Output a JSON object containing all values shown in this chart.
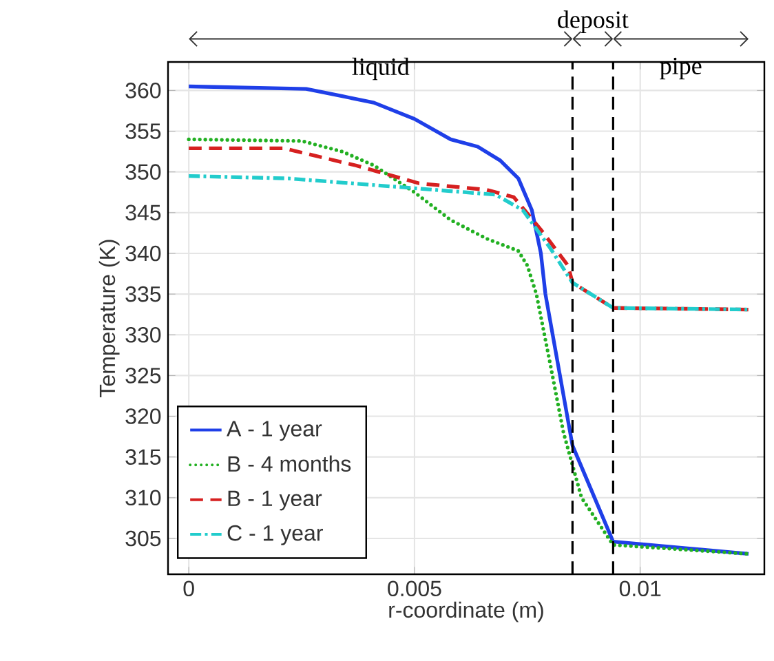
{
  "chart_data": {
    "type": "line",
    "xlabel": "r-coordinate (m)",
    "ylabel": "Temperature (K)",
    "xlim": [
      -0.00046,
      0.01275
    ],
    "ylim": [
      300.6,
      363.5
    ],
    "xticks": [
      0,
      0.005,
      0.01
    ],
    "yticks": [
      305,
      310,
      315,
      320,
      325,
      330,
      335,
      340,
      345,
      350,
      355,
      360
    ],
    "grid": true,
    "legend": "bottom left",
    "ref_lines": [
      {
        "axis": "x",
        "value": 0.0085,
        "color": "#000000",
        "line_style": "dashed"
      },
      {
        "axis": "x",
        "value": 0.0094,
        "color": "#000000",
        "line_style": "dashed"
      }
    ],
    "annotations": [
      "liquid",
      "deposit",
      "pipe"
    ],
    "series": [
      {
        "name": "A - 1 year",
        "color": "#1f3fe8",
        "line_style": "solid",
        "x": [
          0,
          0.0026,
          0.0034,
          0.0041,
          0.005,
          0.0058,
          0.0064,
          0.0069,
          0.0073,
          0.0076,
          0.0078,
          0.0079,
          0.0085,
          0.0094,
          0.0124
        ],
        "values": [
          360.5,
          360.2,
          359.3,
          358.5,
          356.5,
          354,
          353.1,
          351.4,
          349.2,
          345.3,
          340,
          335,
          316.4,
          304.6,
          303.1
        ]
      },
      {
        "name": "B - 4 months",
        "color": "#22b022",
        "line_style": "dotted",
        "x": [
          0,
          0.0025,
          0.0034,
          0.0041,
          0.005,
          0.0058,
          0.0066,
          0.0073,
          0.0075,
          0.0077,
          0.008,
          0.0083,
          0.0087,
          0.0094,
          0.0124
        ],
        "values": [
          354,
          353.8,
          352.5,
          350.8,
          347.5,
          344.1,
          341.8,
          340.3,
          338.5,
          335,
          326.6,
          318,
          310,
          304.2,
          303.1
        ]
      },
      {
        "name": "B - 1 year",
        "color": "#d62020",
        "line_style": "dashed",
        "x": [
          0,
          0.0021,
          0.0037,
          0.0051,
          0.0066,
          0.0072,
          0.0078,
          0.0084,
          0.0085,
          0.0094,
          0.0124
        ],
        "values": [
          352.9,
          352.9,
          350.8,
          348.6,
          347.8,
          346.9,
          342.9,
          338.5,
          336.4,
          333.3,
          333.1
        ]
      },
      {
        "name": "C - 1 year",
        "color": "#22cccc",
        "line_style": "dashdot",
        "x": [
          0,
          0.0022,
          0.005,
          0.0068,
          0.0074,
          0.008,
          0.0085,
          0.0094,
          0.0124
        ],
        "values": [
          349.5,
          349.2,
          348,
          347.2,
          345.3,
          340.7,
          336.4,
          333.3,
          333.1
        ]
      }
    ]
  }
}
